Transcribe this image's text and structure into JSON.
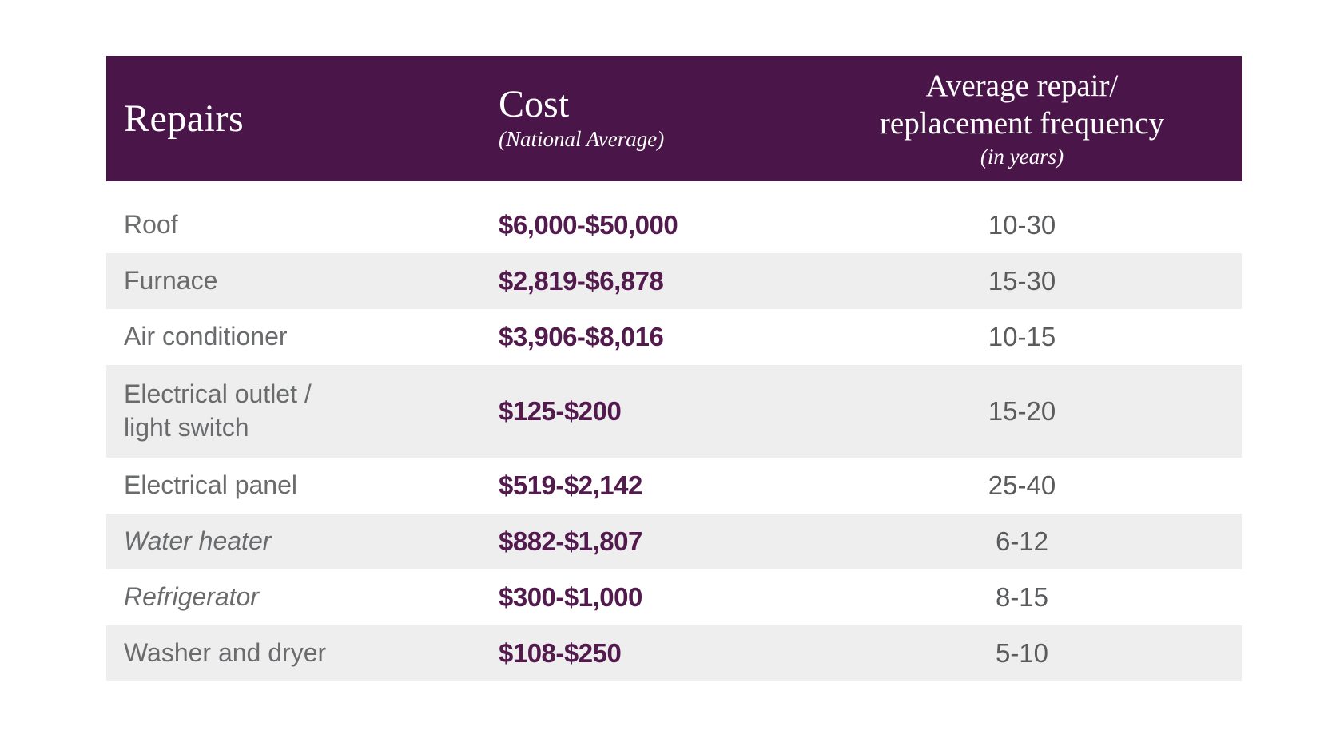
{
  "table": {
    "header": {
      "repairs_label": "Repairs",
      "cost_label": "Cost",
      "cost_sublabel": "(National Average)",
      "frequency_label_line1": "Average repair/",
      "frequency_label_line2": "replacement frequency",
      "frequency_sublabel": "(in years)"
    },
    "rows": [
      {
        "repair": "Roof",
        "cost": "$6,000-$50,000",
        "frequency": "10-30",
        "shaded": false,
        "italic": false,
        "two_line": false
      },
      {
        "repair": "Furnace",
        "cost": "$2,819-$6,878",
        "frequency": "15-30",
        "shaded": true,
        "italic": false,
        "two_line": false
      },
      {
        "repair": "Air conditioner",
        "cost": "$3,906-$8,016",
        "frequency": "10-15",
        "shaded": false,
        "italic": false,
        "two_line": false
      },
      {
        "repair": "Electrical outlet /\nlight switch",
        "cost": "$125-$200",
        "frequency": "15-20",
        "shaded": true,
        "italic": false,
        "two_line": true
      },
      {
        "repair": "Electrical panel",
        "cost": "$519-$2,142",
        "frequency": "25-40",
        "shaded": false,
        "italic": false,
        "two_line": false
      },
      {
        "repair": "Water heater",
        "cost": "$882-$1,807",
        "frequency": "6-12",
        "shaded": true,
        "italic": true,
        "two_line": false
      },
      {
        "repair": "Refrigerator",
        "cost": "$300-$1,000",
        "frequency": "8-15",
        "shaded": false,
        "italic": true,
        "two_line": false
      },
      {
        "repair": "Washer and dryer",
        "cost": "$108-$250",
        "frequency": "5-10",
        "shaded": true,
        "italic": false,
        "two_line": false
      }
    ],
    "colors": {
      "header_bg": "#4a1548",
      "header_text": "#ffffff",
      "cost_text": "#531a4d",
      "repair_text": "#6a6b6d",
      "frequency_text": "#5a5b5d",
      "shaded_row_bg": "#eeeeee",
      "page_bg": "#ffffff"
    }
  },
  "chart_data": {
    "type": "table",
    "title": "",
    "columns": [
      "Repairs",
      "Cost (National Average)",
      "Average repair/replacement frequency (in years)"
    ],
    "rows": [
      [
        "Roof",
        "$6,000-$50,000",
        "10-30"
      ],
      [
        "Furnace",
        "$2,819-$6,878",
        "15-30"
      ],
      [
        "Air conditioner",
        "$3,906-$8,016",
        "10-15"
      ],
      [
        "Electrical outlet / light switch",
        "$125-$200",
        "15-20"
      ],
      [
        "Electrical panel",
        "$519-$2,142",
        "25-40"
      ],
      [
        "Water heater",
        "$882-$1,807",
        "6-12"
      ],
      [
        "Refrigerator",
        "$300-$1,000",
        "8-15"
      ],
      [
        "Washer and dryer",
        "$108-$250",
        "5-10"
      ]
    ],
    "layout_hints": {
      "shaded_rows": [
        1,
        3,
        5,
        7
      ],
      "italic_rows": [
        5,
        6
      ],
      "cost_column_align": "left",
      "frequency_column_align": "center"
    }
  }
}
